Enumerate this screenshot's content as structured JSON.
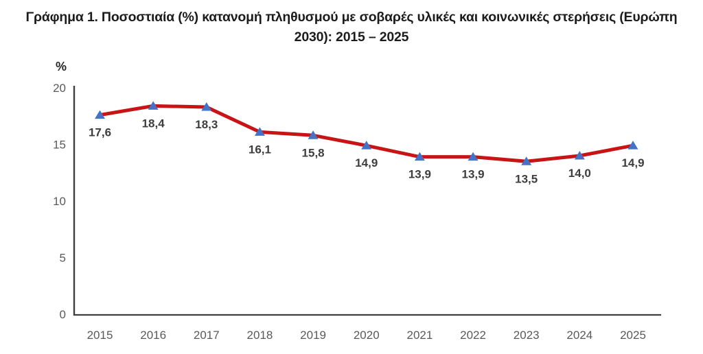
{
  "title": {
    "lines": [
      "Γράφημα 1. Ποσοστιαία (%) κατανομή πληθυσμού με σοβαρές υλικές και κοινωνικές στερήσεις (Ευρώπη",
      "2030): 2015 – 2025"
    ]
  },
  "chart_data": {
    "type": "line",
    "categories": [
      "2015",
      "2016",
      "2017",
      "2018",
      "2019",
      "2020",
      "2021",
      "2022",
      "2023",
      "2024",
      "2025"
    ],
    "values": [
      17.6,
      18.4,
      18.3,
      16.1,
      15.8,
      14.9,
      13.9,
      13.9,
      13.5,
      14.0,
      14.9
    ],
    "value_labels": [
      "17,6",
      "18,4",
      "18,3",
      "16,1",
      "15,8",
      "14,9",
      "13,9",
      "13,9",
      "13,5",
      "14,0",
      "14,9"
    ],
    "ylabel": "%",
    "y_ticks": [
      0,
      5,
      10,
      15,
      20
    ],
    "ylim": [
      0,
      20
    ],
    "grid": false,
    "legend": "none",
    "marker_shape": "triangle-up",
    "colors": {
      "line": "#c81414",
      "marker": "#4472c4",
      "axis": "#3f3f3f",
      "tick_label": "#595959",
      "data_label": "#3d3d3d",
      "ylabel": "#262626"
    }
  }
}
